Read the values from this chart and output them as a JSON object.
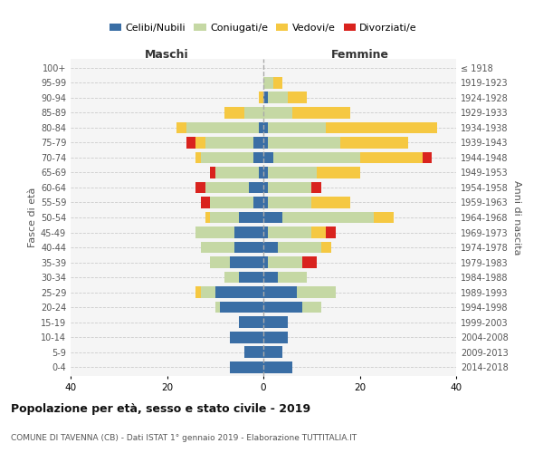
{
  "age_groups": [
    "0-4",
    "5-9",
    "10-14",
    "15-19",
    "20-24",
    "25-29",
    "30-34",
    "35-39",
    "40-44",
    "45-49",
    "50-54",
    "55-59",
    "60-64",
    "65-69",
    "70-74",
    "75-79",
    "80-84",
    "85-89",
    "90-94",
    "95-99",
    "100+"
  ],
  "birth_years": [
    "2014-2018",
    "2009-2013",
    "2004-2008",
    "1999-2003",
    "1994-1998",
    "1989-1993",
    "1984-1988",
    "1979-1983",
    "1974-1978",
    "1969-1973",
    "1964-1968",
    "1959-1963",
    "1954-1958",
    "1949-1953",
    "1944-1948",
    "1939-1943",
    "1934-1938",
    "1929-1933",
    "1924-1928",
    "1919-1923",
    "≤ 1918"
  ],
  "colors": {
    "celibe": "#3a6ea5",
    "coniugato": "#c5d8a4",
    "vedovo": "#f5c842",
    "divorziato": "#d9231e"
  },
  "maschi": {
    "celibe": [
      7,
      4,
      7,
      5,
      9,
      10,
      5,
      7,
      6,
      6,
      5,
      2,
      3,
      1,
      2,
      2,
      1,
      0,
      0,
      0,
      0
    ],
    "coniugato": [
      0,
      0,
      0,
      0,
      1,
      3,
      3,
      4,
      7,
      8,
      6,
      9,
      9,
      9,
      11,
      10,
      15,
      4,
      0,
      0,
      0
    ],
    "vedovo": [
      0,
      0,
      0,
      0,
      0,
      1,
      0,
      0,
      0,
      0,
      1,
      0,
      0,
      0,
      1,
      2,
      2,
      4,
      1,
      0,
      0
    ],
    "divorziato": [
      0,
      0,
      0,
      0,
      0,
      0,
      0,
      0,
      0,
      0,
      0,
      2,
      2,
      1,
      0,
      2,
      0,
      0,
      0,
      0,
      0
    ]
  },
  "femmine": {
    "nubile": [
      6,
      4,
      5,
      5,
      8,
      7,
      3,
      1,
      3,
      1,
      4,
      1,
      1,
      1,
      2,
      1,
      1,
      0,
      1,
      0,
      0
    ],
    "coniugata": [
      0,
      0,
      0,
      0,
      4,
      8,
      6,
      7,
      9,
      9,
      19,
      9,
      9,
      10,
      18,
      15,
      12,
      6,
      4,
      2,
      0
    ],
    "vedova": [
      0,
      0,
      0,
      0,
      0,
      0,
      0,
      0,
      2,
      3,
      4,
      8,
      0,
      9,
      13,
      14,
      23,
      12,
      4,
      2,
      0
    ],
    "divorziata": [
      0,
      0,
      0,
      0,
      0,
      0,
      0,
      3,
      0,
      2,
      0,
      0,
      2,
      0,
      2,
      0,
      0,
      0,
      0,
      0,
      0
    ]
  },
  "xlim": 40,
  "title": "Popolazione per età, sesso e stato civile - 2019",
  "subtitle": "COMUNE DI TAVENNA (CB) - Dati ISTAT 1° gennaio 2019 - Elaborazione TUTTITALIA.IT",
  "ylabel_left": "Fasce di età",
  "ylabel_right": "Anni di nascita",
  "xlabel_maschi": "Maschi",
  "xlabel_femmine": "Femmine",
  "bg_color": "#f5f5f5",
  "plot_bg": "#ffffff",
  "legend_labels": [
    "Celibi/Nubili",
    "Coniugati/e",
    "Vedovi/e",
    "Divorziati/e"
  ]
}
